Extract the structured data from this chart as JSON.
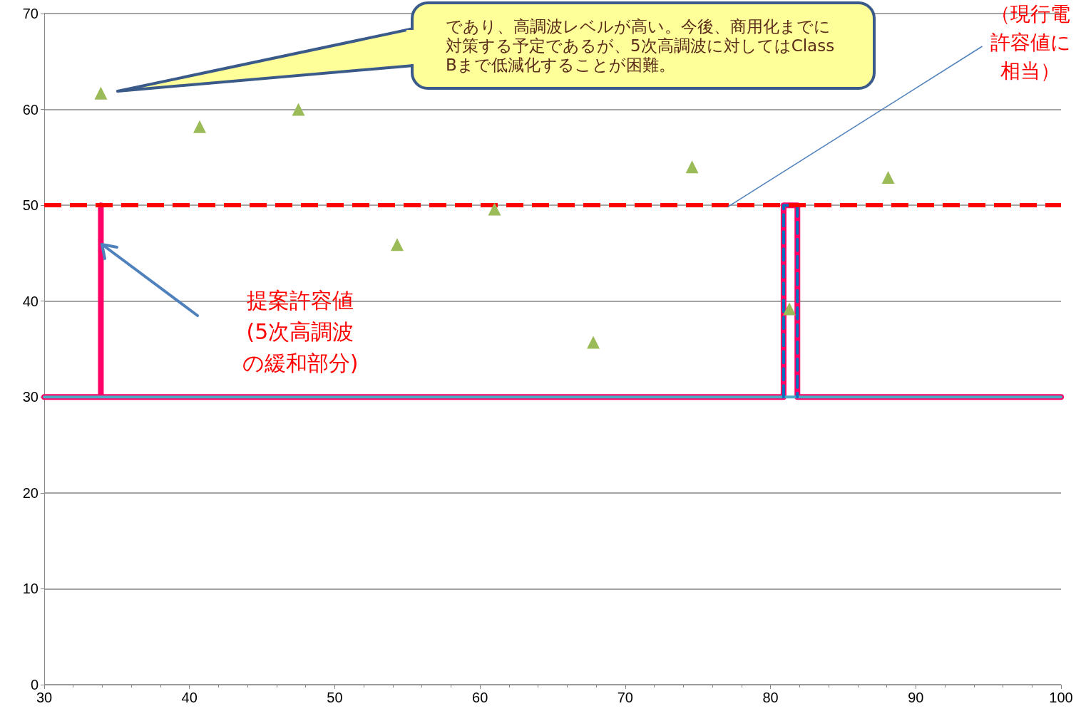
{
  "chart_data": {
    "type": "scatter",
    "xlim": [
      30,
      100
    ],
    "xticks": [
      30,
      40,
      50,
      60,
      70,
      80,
      90,
      100
    ],
    "ylim": [
      0,
      70
    ],
    "yticks": [
      0,
      10,
      20,
      30,
      40,
      50,
      60,
      70
    ],
    "grid": "y",
    "marker": "triangle",
    "series": [
      {
        "type": "line",
        "color": "#ff0066",
        "marker": "none",
        "line_style": "solid",
        "x": [
          30,
          33.9,
          33.9,
          33.9,
          80.9,
          80.9,
          81.85,
          81.85,
          100
        ],
        "values": [
          30,
          30,
          50,
          30,
          30,
          50,
          50,
          30,
          30
        ]
      },
      {
        "type": "line",
        "color": "#4bacc6",
        "marker": "none",
        "line_style": "solid",
        "x": [
          30,
          100
        ],
        "values": [
          30,
          30
        ]
      },
      {
        "type": "line",
        "color": "#0070c0",
        "marker": "none",
        "line_style": "dashed",
        "x": [
          80.9,
          80.9,
          81.85,
          81.85
        ],
        "values": [
          30,
          50,
          50,
          30
        ]
      },
      {
        "color": "#9bbb59",
        "x": [
          33.9,
          40.7,
          47.5,
          54.3,
          61.0,
          67.8,
          74.6,
          81.3,
          88.1
        ],
        "values": [
          61.7,
          58.2,
          60.0,
          45.9,
          49.6,
          35.7,
          54.0,
          39.2,
          52.9
        ]
      }
    ],
    "ref_lines": [
      {
        "axis": "y",
        "value": 50,
        "color": "#ff0000",
        "line_style": "dashed"
      }
    ],
    "annotations": [
      "であり、高調波レベルが高い。今後、商用化までに対策する予定であるが、5次高調波に対してはClass Bまで低減化することが困難。",
      "提案許容値(5次高調波の緩和部分)",
      {
        "text": "（現行電許容値に相当）",
        "x": 77.1,
        "y": 50
      }
    ]
  }
}
